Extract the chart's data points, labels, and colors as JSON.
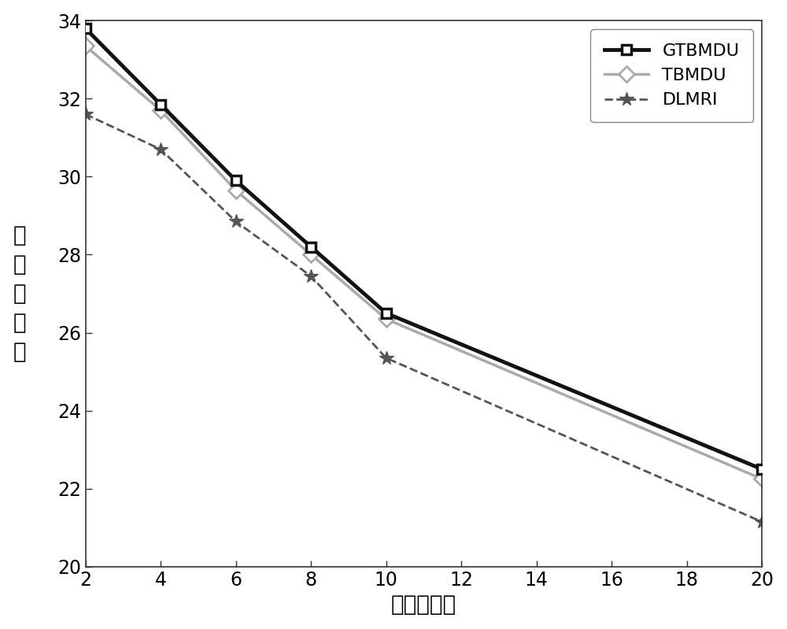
{
  "x": [
    2,
    4,
    6,
    8,
    10,
    20
  ],
  "GTBMDU_y": [
    33.8,
    31.85,
    29.9,
    28.2,
    26.5,
    22.5
  ],
  "TBMDU_y": [
    33.35,
    31.7,
    29.65,
    28.0,
    26.35,
    22.25
  ],
  "DLMRI_y": [
    31.6,
    30.7,
    28.85,
    27.45,
    25.35,
    21.15
  ],
  "GTBMDU_color": "#111111",
  "TBMDU_color": "#aaaaaa",
  "DLMRI_color": "#555555",
  "xlabel": "欠采样因子",
  "ylabel_chars": [
    "峰",
    "値",
    "信",
    "噪",
    "比"
  ],
  "xlim": [
    2,
    20
  ],
  "ylim": [
    20,
    34
  ],
  "xticks": [
    2,
    4,
    6,
    8,
    10,
    12,
    14,
    16,
    18,
    20
  ],
  "yticks": [
    20,
    22,
    24,
    26,
    28,
    30,
    32,
    34
  ],
  "xlabel_fontsize": 20,
  "ylabel_fontsize": 20,
  "tick_fontsize": 17,
  "legend_fontsize": 16,
  "legend_loc": "upper right",
  "bg_color": "#ffffff"
}
